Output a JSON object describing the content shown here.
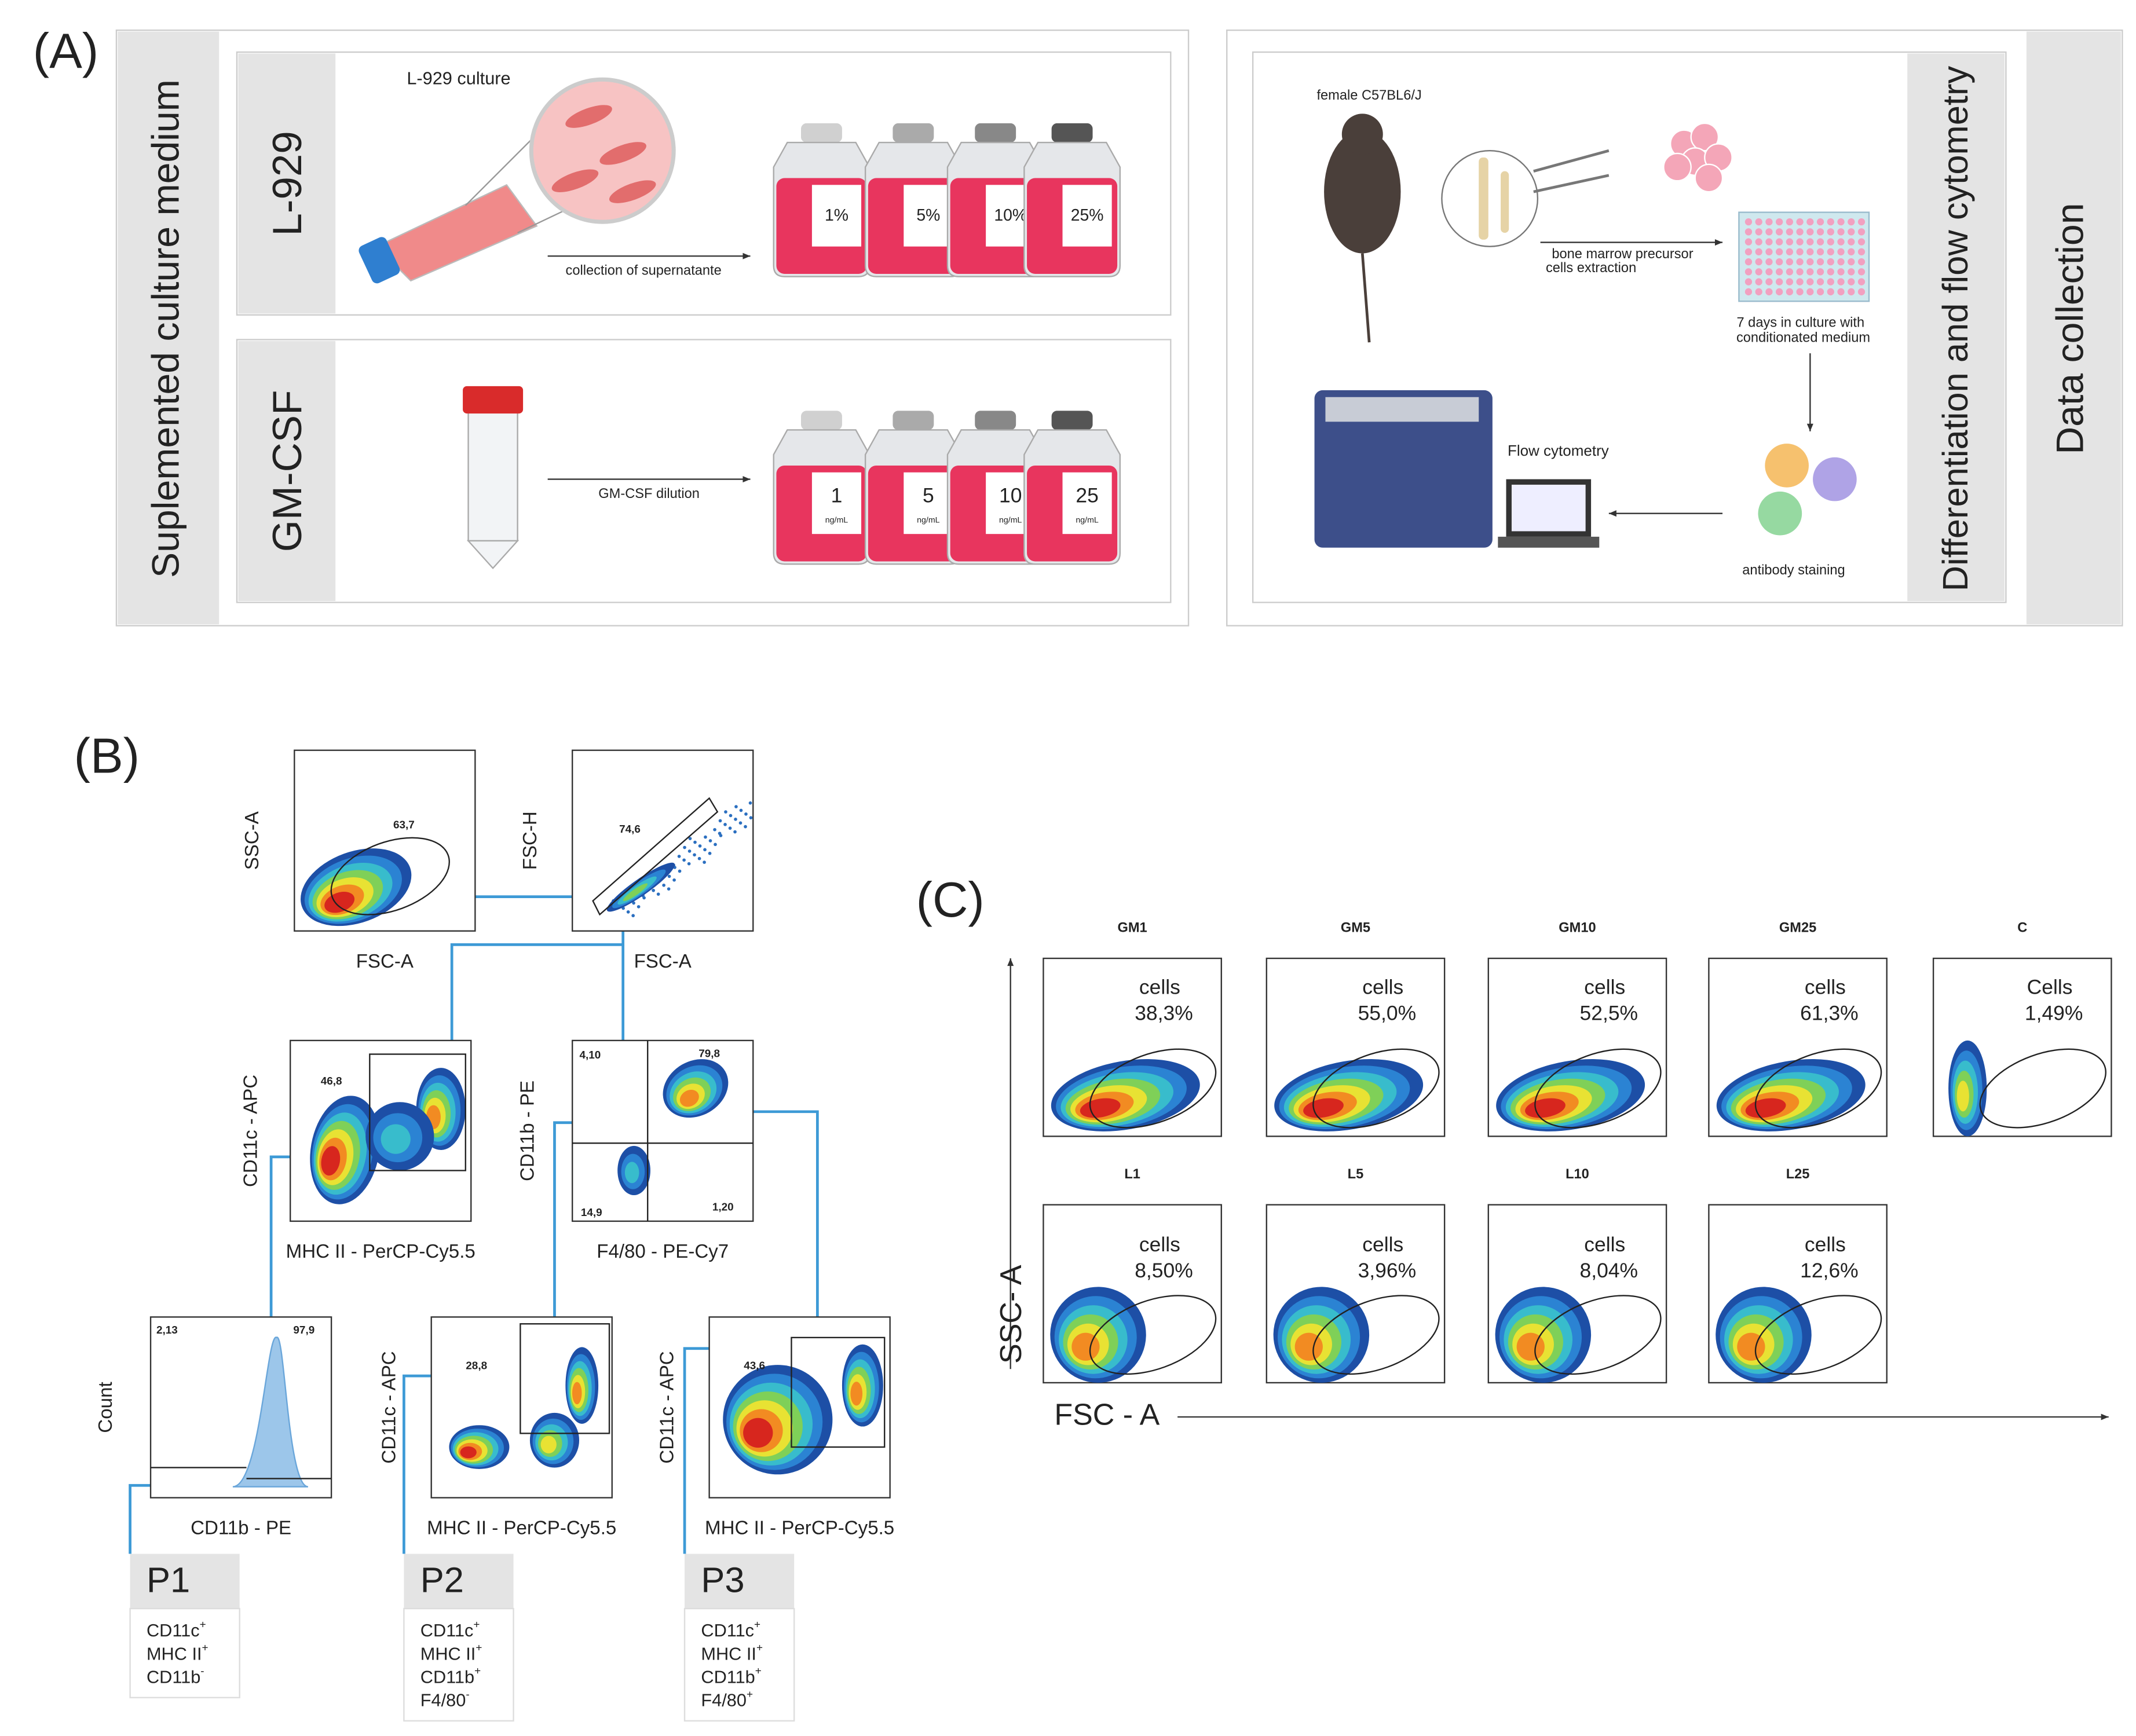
{
  "panels": {
    "a": {
      "label": "(A)",
      "left_title": "Suplemented culture medium",
      "rows": [
        {
          "name": "L-929",
          "culture_label": "L-929 culture",
          "arrow_label": "collection of supernatante",
          "bottles": [
            "1%",
            "5%",
            "10%",
            "25%"
          ]
        },
        {
          "name": "GM-CSF",
          "arrow_label": "GM-CSF dilution",
          "bottles": [
            [
              "1",
              "ng/mL"
            ],
            [
              "5",
              "ng/mL"
            ],
            [
              "10",
              "ng/mL"
            ],
            [
              "25",
              "ng/mL"
            ]
          ]
        }
      ],
      "right": {
        "mouse": "female C57BL6/J",
        "extraction": [
          "bone marrow precursor",
          "cells extraction"
        ],
        "culture": [
          "7 days in culture with",
          "conditionated medium"
        ],
        "staining": "antibody staining",
        "flow": "Flow cytometry",
        "side1": "Differentiation and flow cytometry",
        "side2": "Data collection"
      }
    },
    "b": {
      "label": "(B)",
      "plots": [
        {
          "x": "FSC-A",
          "y": "SSC-A",
          "gates": [
            "63,7"
          ]
        },
        {
          "x": "FSC-A",
          "y": "FSC-H",
          "gates": [
            "74,6"
          ]
        },
        {
          "x": "MHC II - PerCP-Cy5.5",
          "y": "CD11c - APC",
          "gates": [
            "46,8"
          ]
        },
        {
          "x": "F4/80 - PE-Cy7",
          "y": "CD11b - PE",
          "gates": [
            "4,10",
            "79,8",
            "14,9",
            "1,20"
          ]
        },
        {
          "x": "CD11b - PE",
          "y": "Count",
          "gates": [
            "2,13",
            "97,9"
          ]
        },
        {
          "x": "MHC II - PerCP-Cy5.5",
          "y": "CD11c - APC",
          "gates": [
            "28,8"
          ]
        },
        {
          "x": "MHC II - PerCP-Cy5.5",
          "y": "CD11c - APC",
          "gates": [
            "43,6"
          ]
        }
      ],
      "populations": [
        {
          "name": "P1",
          "markers": [
            [
              "CD11c",
              "+"
            ],
            [
              "MHC II",
              "+"
            ],
            [
              "CD11b",
              "-"
            ]
          ]
        },
        {
          "name": "P2",
          "markers": [
            [
              "CD11c",
              "+"
            ],
            [
              "MHC II",
              "+"
            ],
            [
              "CD11b",
              "+"
            ],
            [
              "F4/80",
              "-"
            ]
          ]
        },
        {
          "name": "P3",
          "markers": [
            [
              "CD11c",
              "+"
            ],
            [
              "MHC II",
              "+"
            ],
            [
              "CD11b",
              "+"
            ],
            [
              "F4/80",
              "+"
            ]
          ]
        }
      ]
    },
    "c": {
      "label": "(C)",
      "x_axis": "FSC - A",
      "y_axis": "SSC- A",
      "plots": [
        {
          "title": "GM1",
          "gate": "cells",
          "value": "38,3%"
        },
        {
          "title": "GM5",
          "gate": "cells",
          "value": "55,0%"
        },
        {
          "title": "GM10",
          "gate": "cells",
          "value": "52,5%"
        },
        {
          "title": "GM25",
          "gate": "cells",
          "value": "61,3%"
        },
        {
          "title": "C",
          "gate": "Cells",
          "value": "1,49%"
        },
        {
          "title": "L1",
          "gate": "cells",
          "value": "8,50%"
        },
        {
          "title": "L5",
          "gate": "cells",
          "value": "3,96%"
        },
        {
          "title": "L10",
          "gate": "cells",
          "value": "8,04%"
        },
        {
          "title": "L25",
          "gate": "cells",
          "value": "12,6%"
        }
      ]
    }
  }
}
